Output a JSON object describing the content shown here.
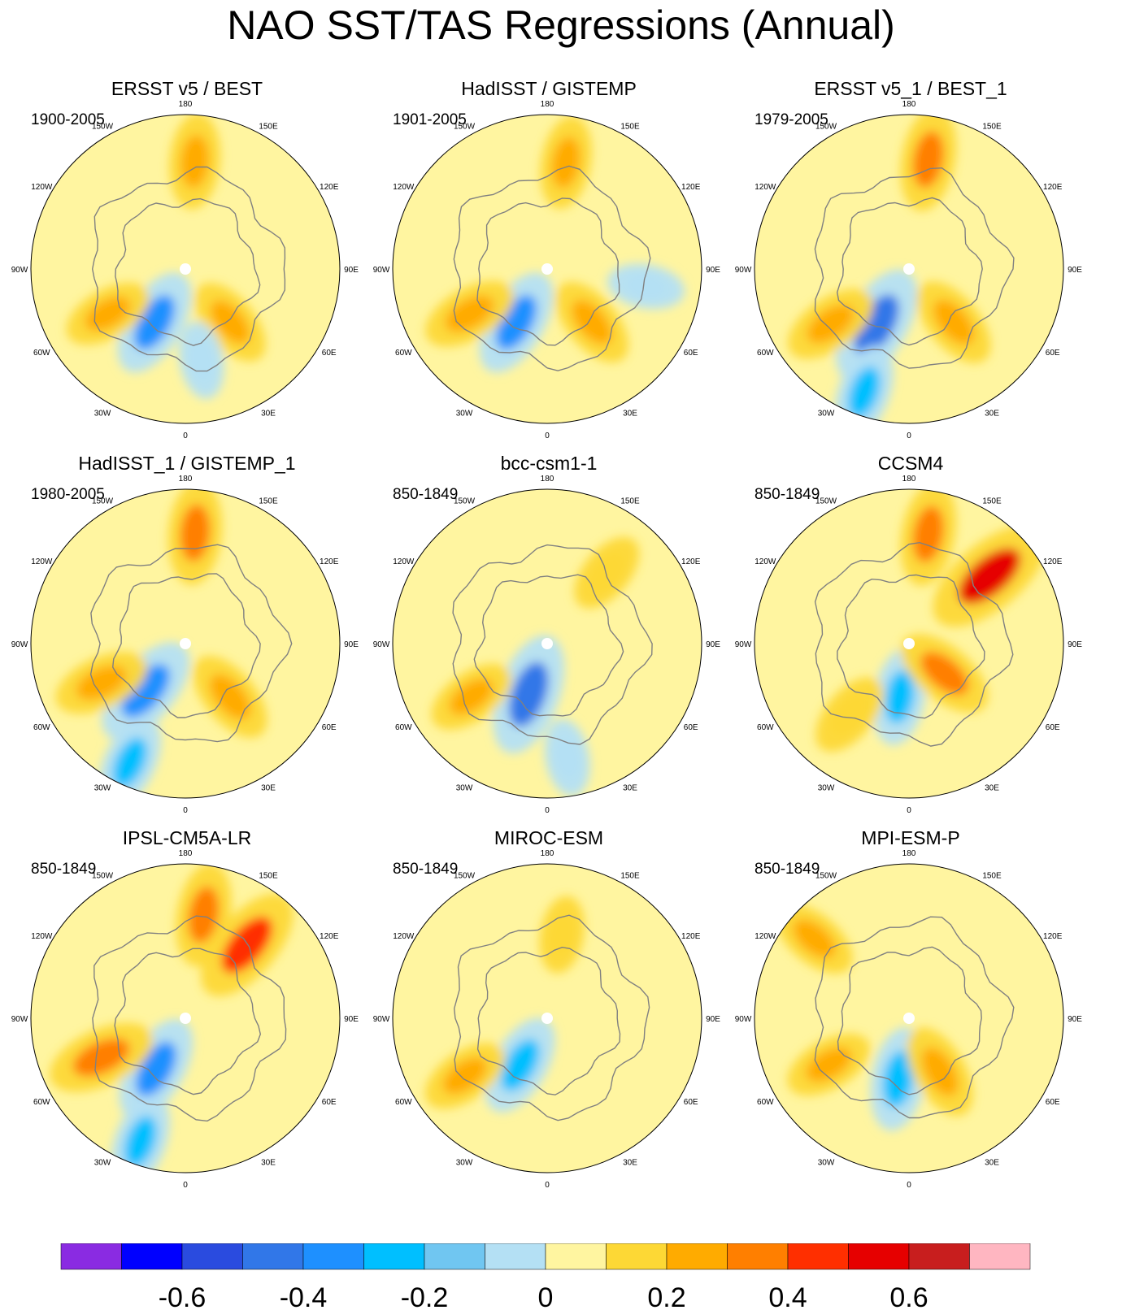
{
  "title": "NAO SST/TAS Regressions (Annual)",
  "chart_data": {
    "type": "heatmap",
    "projection": "polar stereographic (Northern Hemisphere)",
    "variable": "NAO SST/TAS regression (annual)",
    "longitude_labels": [
      "180",
      "150E",
      "120E",
      "90E",
      "60E",
      "30E",
      "0",
      "30W",
      "60W",
      "90W",
      "120W",
      "150W"
    ],
    "panels": [
      {
        "name": "ERSST v5 / BEST",
        "period": "1900-2005",
        "features": [
          {
            "lon": -30,
            "r": 0.4,
            "v": -0.35
          },
          {
            "lon": -60,
            "r": 0.58,
            "v": 0.2
          },
          {
            "lon": 175,
            "r": 0.7,
            "v": 0.24
          },
          {
            "lon": 40,
            "r": 0.45,
            "v": 0.22
          },
          {
            "lon": 10,
            "r": 0.6,
            "v": -0.1
          }
        ]
      },
      {
        "name": "HadISST / GISTEMP",
        "period": "1901-2005",
        "features": [
          {
            "lon": -30,
            "r": 0.4,
            "v": -0.35
          },
          {
            "lon": -60,
            "r": 0.58,
            "v": 0.25
          },
          {
            "lon": 170,
            "r": 0.7,
            "v": 0.22
          },
          {
            "lon": 40,
            "r": 0.45,
            "v": 0.24
          },
          {
            "lon": 80,
            "r": 0.65,
            "v": -0.1
          }
        ]
      },
      {
        "name": "ERSST v5_1 / BEST_1",
        "period": "1979-2005",
        "features": [
          {
            "lon": -30,
            "r": 0.42,
            "v": -0.45
          },
          {
            "lon": -55,
            "r": 0.62,
            "v": 0.25
          },
          {
            "lon": 170,
            "r": 0.72,
            "v": 0.3
          },
          {
            "lon": -20,
            "r": 0.85,
            "v": -0.25
          },
          {
            "lon": 40,
            "r": 0.45,
            "v": 0.25
          }
        ]
      },
      {
        "name": "HadISST_1 / GISTEMP_1",
        "period": "1980-2005",
        "features": [
          {
            "lon": -40,
            "r": 0.4,
            "v": -0.4
          },
          {
            "lon": -65,
            "r": 0.6,
            "v": 0.25
          },
          {
            "lon": 175,
            "r": 0.72,
            "v": 0.3
          },
          {
            "lon": -25,
            "r": 0.85,
            "v": -0.25
          },
          {
            "lon": 40,
            "r": 0.45,
            "v": 0.25
          }
        ]
      },
      {
        "name": "bcc-csm1-1",
        "period": "850-1849",
        "features": [
          {
            "lon": -20,
            "r": 0.35,
            "v": -0.45
          },
          {
            "lon": -55,
            "r": 0.6,
            "v": 0.2
          },
          {
            "lon": 140,
            "r": 0.6,
            "v": 0.15
          },
          {
            "lon": 10,
            "r": 0.75,
            "v": -0.1
          }
        ]
      },
      {
        "name": "CCSM4",
        "period": "850-1849",
        "features": [
          {
            "lon": -10,
            "r": 0.35,
            "v": -0.25
          },
          {
            "lon": 170,
            "r": 0.72,
            "v": 0.3
          },
          {
            "lon": 130,
            "r": 0.68,
            "v": 0.55
          },
          {
            "lon": -40,
            "r": 0.6,
            "v": 0.18
          },
          {
            "lon": 50,
            "r": 0.3,
            "v": 0.3
          }
        ]
      },
      {
        "name": "IPSL-CM5A-LR",
        "period": "850-1849",
        "features": [
          {
            "lon": -30,
            "r": 0.38,
            "v": -0.35
          },
          {
            "lon": -65,
            "r": 0.6,
            "v": 0.35
          },
          {
            "lon": 170,
            "r": 0.68,
            "v": 0.3
          },
          {
            "lon": 140,
            "r": 0.62,
            "v": 0.45
          },
          {
            "lon": -20,
            "r": 0.85,
            "v": -0.25
          }
        ]
      },
      {
        "name": "MIROC-ESM",
        "period": "850-1849",
        "features": [
          {
            "lon": -30,
            "r": 0.35,
            "v": -0.3
          },
          {
            "lon": -55,
            "r": 0.65,
            "v": 0.2
          },
          {
            "lon": 170,
            "r": 0.55,
            "v": 0.1
          }
        ]
      },
      {
        "name": "MPI-ESM-P",
        "period": "850-1849",
        "features": [
          {
            "lon": -10,
            "r": 0.4,
            "v": -0.3
          },
          {
            "lon": -60,
            "r": 0.6,
            "v": 0.2
          },
          {
            "lon": 30,
            "r": 0.4,
            "v": 0.25
          },
          {
            "lon": -130,
            "r": 0.8,
            "v": 0.2
          }
        ]
      }
    ],
    "colorbar": {
      "colors": [
        "#8a2be2",
        "#0000ff",
        "#2a4bdf",
        "#3177e8",
        "#1e90ff",
        "#00bfff",
        "#70c6f1",
        "#b4e0f4",
        "#fff5a0",
        "#fdd835",
        "#ffab00",
        "#ff7f00",
        "#ff2f00",
        "#e60000",
        "#c81e1e",
        "#ffb6c1"
      ],
      "levels": [
        -0.7,
        -0.6,
        -0.5,
        -0.4,
        -0.3,
        -0.2,
        -0.1,
        0,
        0.1,
        0.2,
        0.3,
        0.4,
        0.5,
        0.6,
        0.7
      ],
      "tick_labels": [
        "-0.6",
        "-0.4",
        "-0.2",
        "0",
        "0.2",
        "0.4",
        "0.6"
      ]
    }
  }
}
